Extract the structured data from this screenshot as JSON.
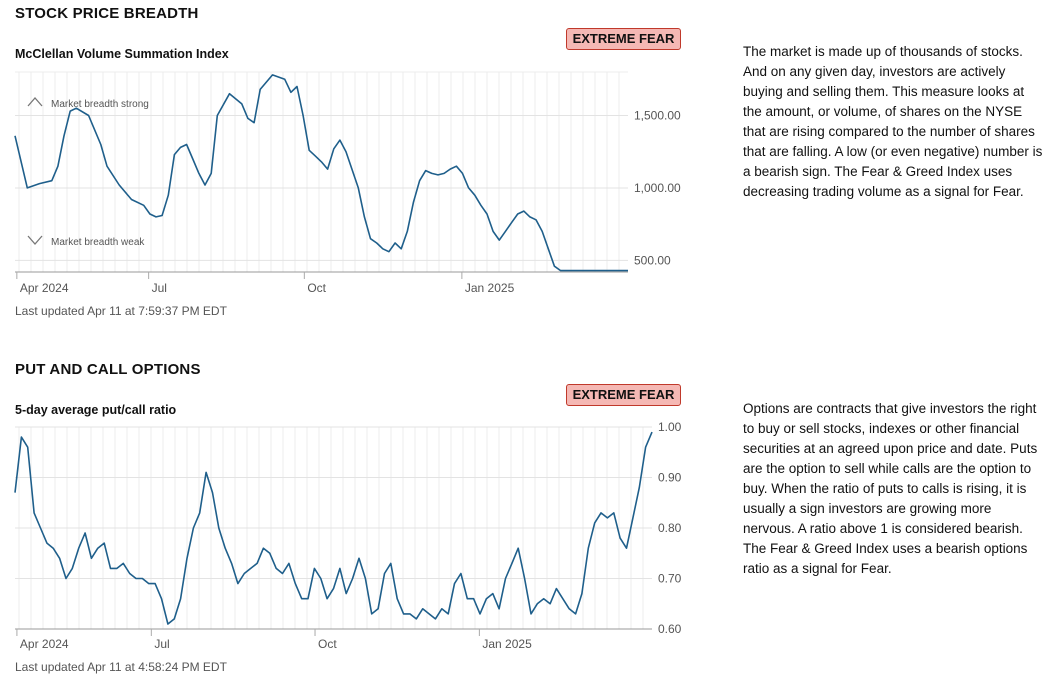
{
  "breadth": {
    "section_title": "STOCK PRICE BREADTH",
    "chart_title": "McClellan Volume Summation Index",
    "badge": "EXTREME FEAR",
    "description": "The market is made up of thousands of stocks. And on any given day, investors are actively buying and selling them. This measure looks at the amount, or volume, of shares on the NYSE that are rising compared to the number of shares that are falling. A low (or even negative) number is a bearish sign. The Fear & Greed Index uses decreasing trading volume as a signal for Fear.",
    "updated": "Last updated Apr 11 at 7:59:37 PM EDT",
    "annotation_strong": "Market breadth strong",
    "annotation_weak": "Market breadth weak"
  },
  "putcall": {
    "section_title": "PUT AND CALL OPTIONS",
    "chart_title": "5-day average put/call ratio",
    "badge": "EXTREME FEAR",
    "description": "Options are contracts that give investors the right to buy or sell stocks, indexes or other financial securities at an agreed upon price and date. Puts are the option to sell while calls are the option to buy. When the ratio of puts to calls is rising, it is usually a sign investors are growing more nervous. A ratio above 1 is considered bearish. The Fear & Greed Index uses a bearish options ratio as a signal for Fear.",
    "updated": "Last updated Apr 11 at 4:58:24 PM EDT"
  },
  "colors": {
    "line": "#1f5f8b",
    "badge_bg": "#f5b8b4",
    "badge_border": "#c0392b"
  },
  "icons": [
    "chevron-up-icon",
    "chevron-down-icon"
  ],
  "chart_data": [
    {
      "type": "line",
      "title": "McClellan Volume Summation Index",
      "xlabel": "",
      "ylabel": "",
      "x_ticks": [
        "Apr 2024",
        "Jul",
        "Oct",
        "Jan 2025"
      ],
      "y_ticks": [
        "500.00",
        "1,000.00",
        "1,500.00"
      ],
      "ylim": [
        420,
        1800
      ],
      "grid": true,
      "x": [
        0,
        0.02,
        0.04,
        0.06,
        0.07,
        0.08,
        0.09,
        0.1,
        0.12,
        0.14,
        0.15,
        0.17,
        0.19,
        0.21,
        0.22,
        0.23,
        0.24,
        0.25,
        0.26,
        0.27,
        0.28,
        0.29,
        0.3,
        0.31,
        0.32,
        0.33,
        0.35,
        0.37,
        0.38,
        0.39,
        0.4,
        0.42,
        0.44,
        0.45,
        0.46,
        0.47,
        0.48,
        0.49,
        0.5,
        0.51,
        0.52,
        0.53,
        0.54,
        0.56,
        0.57,
        0.58,
        0.59,
        0.6,
        0.61,
        0.62,
        0.63,
        0.64,
        0.65,
        0.66,
        0.67,
        0.68,
        0.69,
        0.7,
        0.71,
        0.72,
        0.73,
        0.74,
        0.75,
        0.76,
        0.77,
        0.78,
        0.79,
        0.8,
        0.81,
        0.82,
        0.83,
        0.84,
        0.85,
        0.86,
        0.87,
        0.88,
        0.89,
        0.9,
        0.91,
        0.92,
        0.93,
        0.94,
        0.95,
        0.96,
        0.97,
        0.98,
        0.99,
        1.0
      ],
      "series": [
        {
          "values": [
            1360,
            1000,
            1030,
            1050,
            1150,
            1360,
            1530,
            1550,
            1500,
            1300,
            1150,
            1020,
            920,
            880,
            820,
            800,
            810,
            950,
            1230,
            1280,
            1300,
            1200,
            1100,
            1020,
            1100,
            1500,
            1650,
            1580,
            1480,
            1450,
            1680,
            1780,
            1750,
            1660,
            1700,
            1500,
            1260,
            1220,
            1180,
            1130,
            1270,
            1330,
            1250,
            1000,
            800,
            650,
            620,
            580,
            560,
            620,
            580,
            700,
            900,
            1050,
            1120,
            1100,
            1090,
            1100,
            1130,
            1150,
            1100,
            1000,
            950,
            880,
            820,
            700,
            640,
            700,
            760,
            820,
            840,
            800,
            780,
            700,
            580,
            460,
            430,
            430,
            430,
            430,
            430,
            430,
            430,
            430,
            430,
            430,
            430,
            430
          ]
        }
      ]
    },
    {
      "type": "line",
      "title": "5-day average put/call ratio",
      "xlabel": "",
      "ylabel": "",
      "x_ticks": [
        "Apr 2024",
        "Jul",
        "Oct",
        "Jan 2025"
      ],
      "y_ticks": [
        "0.60",
        "0.70",
        "0.80",
        "0.90",
        "1.00"
      ],
      "ylim": [
        0.6,
        1.0
      ],
      "grid": true,
      "x": [
        0,
        0.01,
        0.02,
        0.03,
        0.04,
        0.05,
        0.06,
        0.07,
        0.08,
        0.09,
        0.1,
        0.11,
        0.12,
        0.13,
        0.14,
        0.15,
        0.16,
        0.17,
        0.18,
        0.19,
        0.2,
        0.21,
        0.22,
        0.23,
        0.24,
        0.25,
        0.26,
        0.27,
        0.28,
        0.29,
        0.3,
        0.31,
        0.32,
        0.33,
        0.34,
        0.35,
        0.36,
        0.37,
        0.38,
        0.39,
        0.4,
        0.41,
        0.42,
        0.43,
        0.44,
        0.45,
        0.46,
        0.47,
        0.48,
        0.49,
        0.5,
        0.51,
        0.52,
        0.53,
        0.54,
        0.55,
        0.56,
        0.57,
        0.58,
        0.59,
        0.6,
        0.61,
        0.62,
        0.63,
        0.64,
        0.65,
        0.66,
        0.67,
        0.68,
        0.69,
        0.7,
        0.71,
        0.72,
        0.73,
        0.74,
        0.75,
        0.76,
        0.77,
        0.78,
        0.79,
        0.8,
        0.81,
        0.82,
        0.83,
        0.84,
        0.85,
        0.86,
        0.87,
        0.88,
        0.89,
        0.9,
        0.91,
        0.92,
        0.93,
        0.94,
        0.95,
        0.96,
        0.97,
        0.98,
        0.99,
        1.0
      ],
      "series": [
        {
          "values": [
            0.87,
            0.98,
            0.96,
            0.83,
            0.8,
            0.77,
            0.76,
            0.74,
            0.7,
            0.72,
            0.76,
            0.79,
            0.74,
            0.76,
            0.77,
            0.72,
            0.72,
            0.73,
            0.71,
            0.7,
            0.7,
            0.69,
            0.69,
            0.66,
            0.61,
            0.62,
            0.66,
            0.74,
            0.8,
            0.83,
            0.91,
            0.87,
            0.8,
            0.76,
            0.73,
            0.69,
            0.71,
            0.72,
            0.73,
            0.76,
            0.75,
            0.72,
            0.71,
            0.73,
            0.69,
            0.66,
            0.66,
            0.72,
            0.7,
            0.66,
            0.68,
            0.72,
            0.67,
            0.7,
            0.74,
            0.7,
            0.63,
            0.64,
            0.71,
            0.73,
            0.66,
            0.63,
            0.63,
            0.62,
            0.64,
            0.63,
            0.62,
            0.64,
            0.63,
            0.69,
            0.71,
            0.66,
            0.66,
            0.63,
            0.66,
            0.67,
            0.64,
            0.7,
            0.73,
            0.76,
            0.7,
            0.63,
            0.65,
            0.66,
            0.65,
            0.68,
            0.66,
            0.64,
            0.63,
            0.67,
            0.76,
            0.81,
            0.83,
            0.82,
            0.83,
            0.78,
            0.76,
            0.82,
            0.88,
            0.96,
            0.99
          ]
        }
      ]
    }
  ]
}
